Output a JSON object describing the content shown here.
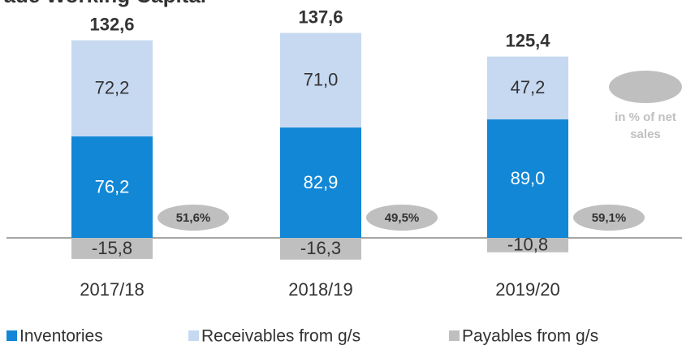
{
  "chart_data": {
    "type": "stacked_bar",
    "title": "Trade Working Capital",
    "categories": [
      "2017/18",
      "2018/19",
      "2019/20"
    ],
    "series": [
      {
        "name": "Inventories",
        "color": "#1187d6",
        "values": [
          76.2,
          82.9,
          89.0
        ],
        "value_labels": [
          "76,2",
          "82,9",
          "89,0"
        ]
      },
      {
        "name": "Receivables from g/s",
        "color": "#c6d9f1",
        "values": [
          72.2,
          71.0,
          47.2
        ],
        "value_labels": [
          "72,2",
          "71,0",
          "47,2"
        ]
      },
      {
        "name": "Payables from g/s",
        "color": "#bfbfbf",
        "values": [
          -15.8,
          -16.3,
          -10.8
        ],
        "value_labels": [
          "-15,8",
          "-16,3",
          "-10,8"
        ]
      }
    ],
    "totals": [
      132.6,
      137.6,
      125.4
    ],
    "total_labels": [
      "132,6",
      "137,6",
      "125,4"
    ],
    "shares": [
      51.6,
      49.5,
      59.1
    ],
    "share_labels": [
      "51,6%",
      "49,5%",
      "59,1%"
    ],
    "annotation": [
      "in % of net",
      "sales"
    ]
  }
}
